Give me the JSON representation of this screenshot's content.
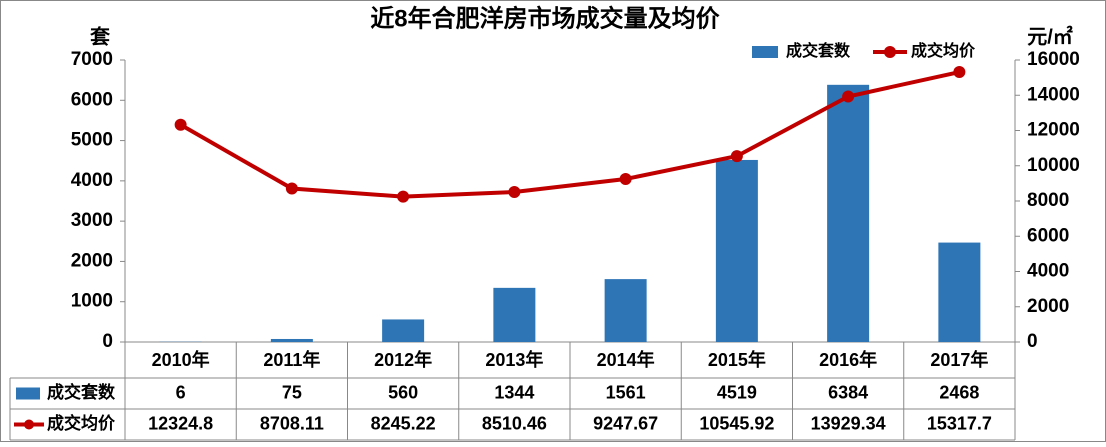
{
  "chart_data": {
    "type": "bar-line",
    "title": "近8年合肥洋房市场成交量及均价",
    "y_label": "套",
    "y2_label": "元/㎡",
    "categories": [
      "2010年",
      "2011年",
      "2012年",
      "2013年",
      "2014年",
      "2015年",
      "2016年",
      "2017年"
    ],
    "series": [
      {
        "name": "成交套数",
        "type": "bar",
        "color": "#2e75b6",
        "values": [
          6,
          75,
          560,
          1344,
          1561,
          4519,
          6384,
          2468
        ]
      },
      {
        "name": "成交均价",
        "type": "line",
        "axis": "y2",
        "color": "#c00000",
        "values": [
          12324.8,
          8708.11,
          8245.22,
          8510.46,
          9247.67,
          10545.92,
          13929.34,
          15317.7
        ]
      }
    ],
    "ylim": [
      0,
      7000
    ],
    "yticks": [
      0,
      1000,
      2000,
      3000,
      4000,
      5000,
      6000,
      7000
    ],
    "y2lim": [
      0,
      16000
    ],
    "y2ticks": [
      0,
      2000,
      4000,
      6000,
      8000,
      10000,
      12000,
      14000,
      16000
    ],
    "legend": "top-right",
    "data_table": true
  }
}
